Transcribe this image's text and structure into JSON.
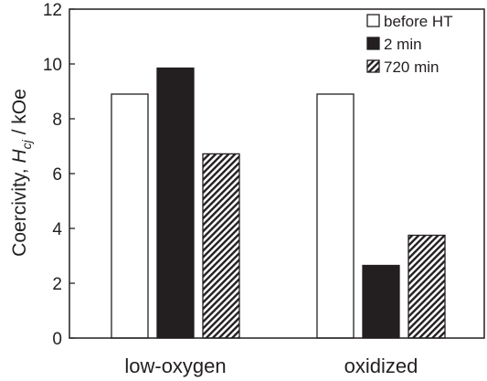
{
  "chart_data": {
    "type": "bar",
    "categories": [
      "low-oxygen",
      "oxidized"
    ],
    "series": [
      {
        "name": "before HT",
        "values": [
          8.9,
          8.9
        ],
        "fill": "#ffffff"
      },
      {
        "name": "2 min",
        "values": [
          9.85,
          2.65
        ],
        "fill": "#231f20"
      },
      {
        "name": "720 min",
        "values": [
          6.72,
          3.75
        ],
        "fill": "hatch"
      }
    ],
    "ylabel": {
      "prefix": "Coercivity, ",
      "symbol": "H",
      "subscript": "cj",
      "unit": " / kOe"
    },
    "ylim": [
      0,
      12
    ],
    "yticks": [
      0,
      2,
      4,
      6,
      8,
      10,
      12
    ],
    "grid": false,
    "legend_position": "top-right",
    "colors": {
      "ink": "#231f20",
      "background": "#ffffff"
    }
  }
}
